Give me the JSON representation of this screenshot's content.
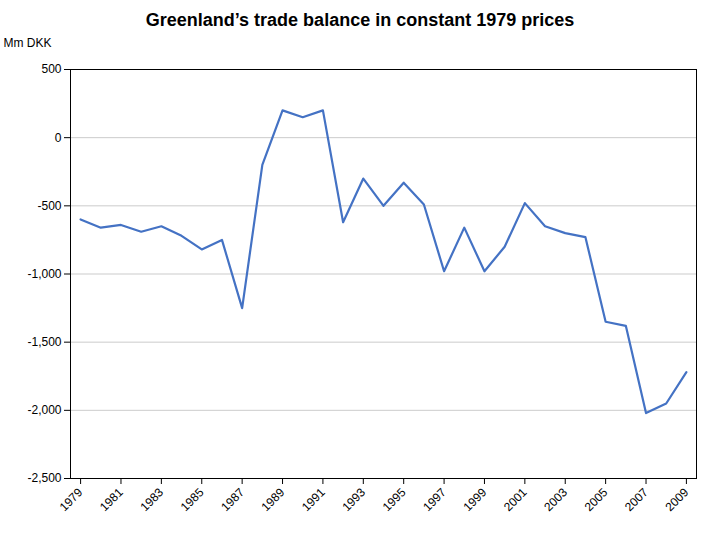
{
  "chart_data": {
    "type": "line",
    "title": "Greenland’s trade balance in constant 1979 prices",
    "ylabel": "Mm DKK",
    "x": [
      1979,
      1980,
      1981,
      1982,
      1983,
      1984,
      1985,
      1986,
      1987,
      1988,
      1989,
      1990,
      1991,
      1992,
      1993,
      1994,
      1995,
      1996,
      1997,
      1998,
      1999,
      2000,
      2001,
      2002,
      2003,
      2004,
      2005,
      2006,
      2007,
      2008,
      2009
    ],
    "values": [
      -600,
      -660,
      -640,
      -690,
      -650,
      -720,
      -820,
      -750,
      -1250,
      -200,
      200,
      150,
      200,
      -620,
      -300,
      -500,
      -330,
      -490,
      -980,
      -660,
      -980,
      -800,
      -480,
      -650,
      -700,
      -730,
      -1350,
      -1380,
      -2020,
      -1950,
      -1720
    ],
    "color": "#4472C4",
    "xlim": [
      1978.5,
      2009.5
    ],
    "xticks": [
      1979,
      1981,
      1983,
      1985,
      1987,
      1989,
      1991,
      1993,
      1995,
      1997,
      1999,
      2001,
      2003,
      2005,
      2007,
      2009
    ],
    "ylim": [
      -2500,
      500
    ],
    "yticks": [
      500,
      0,
      -500,
      {
        "value": -1000,
        "label": "-1,000"
      },
      {
        "value": -1500,
        "label": "-1,500"
      },
      {
        "value": -2000,
        "label": "-2,000"
      },
      {
        "value": -2500,
        "label": "-2,500"
      }
    ],
    "grid": "y"
  }
}
